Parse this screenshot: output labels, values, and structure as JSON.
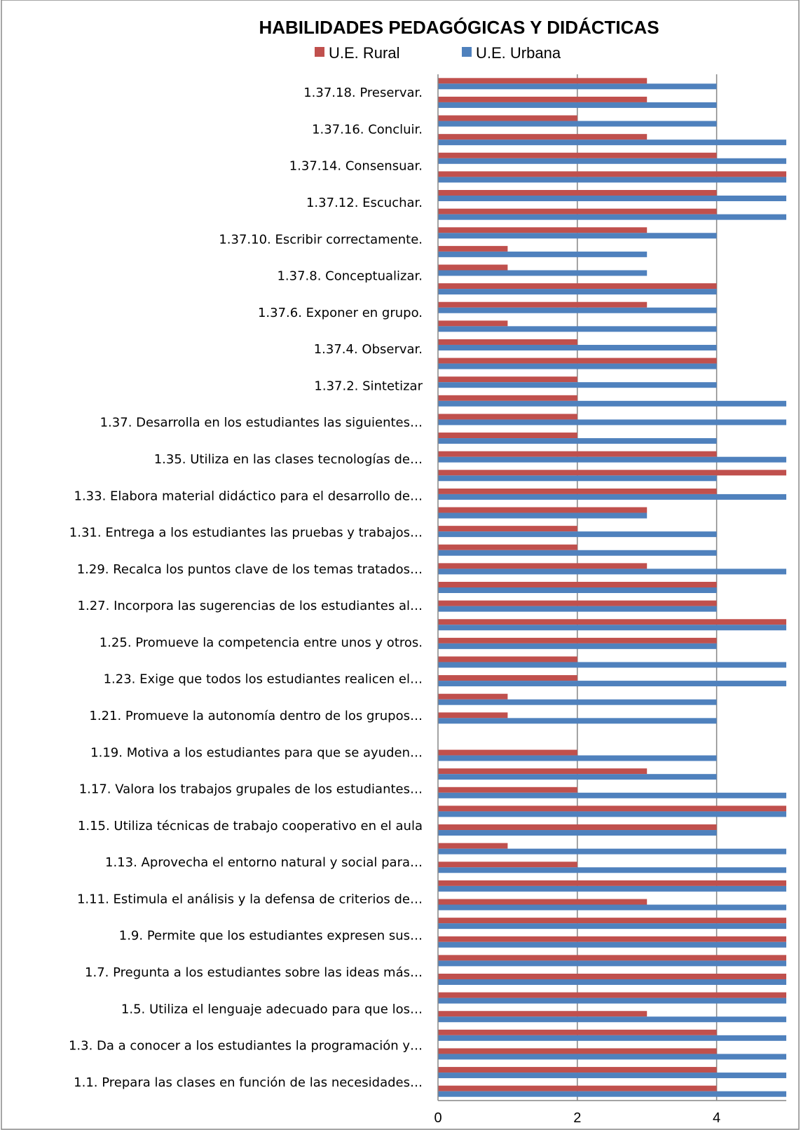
{
  "chart_data": {
    "type": "bar",
    "orientation": "horizontal",
    "title": "HABILIDADES PEDAGÓGICAS Y DIDÁCTICAS",
    "xlabel": "",
    "ylabel": "",
    "xlim": [
      0,
      5
    ],
    "x_ticks": [
      "0",
      "2",
      "4"
    ],
    "grid": true,
    "legend_position": "top",
    "legend": [
      "U.E. Rural",
      "U.E. Urbana"
    ],
    "colors": {
      "rural": "#C0504D",
      "urbana": "#4F81BD"
    },
    "category_labels": [
      "1.37.18.  Preservar.",
      "1.37.16.  Concluir.",
      "1.37.14.  Consensuar.",
      "1.37.12.  Escuchar.",
      "1.37.10.   Escribir correctamente.",
      "1.37.8.    Conceptualizar.",
      "1.37.6.    Exponer en grupo.",
      "1.37.4.    Observar.",
      "1.37.2.    Sintetizar",
      "1.37.   Desarrolla en los estudiantes las siguientes…",
      "1.35.   Utiliza en las clases tecnologías de…",
      "1.33.   Elabora material didáctico para el desarrollo de…",
      "1.31.   Entrega a los estudiantes las pruebas y trabajos…",
      "1.29.   Recalca los puntos clave de los temas tratados…",
      "1.27.   Incorpora las sugerencias de los estudiantes al…",
      "1.25.   Promueve la competencia entre unos y otros.",
      "1.23.   Exige que todos los estudiantes realicen el…",
      "1.21.   Promueve la autonomía dentro de los grupos…",
      "1.19.   Motiva  a los estudiantes para que se ayuden…",
      "1.17.   Valora los trabajos grupales de los estudiantes…",
      "1.15.   Utiliza técnicas de trabajo cooperativo en el aula",
      "1.13.   Aprovecha el entorno natural y social para…",
      "1.11.   Estimula el análisis y la defensa de criterios de…",
      "1.9.  Permite que los estudiantes expresen sus…",
      "1.7.  Pregunta a los estudiantes sobre las ideas más…",
      "1.5.  Utiliza el lenguaje adecuado para que los…",
      "1.3.  Da  a conocer a los estudiantes la programación y…",
      "1.1.   Prepara las clases en función de las necesidades…"
    ],
    "rural": [
      4,
      4,
      4,
      4,
      3,
      5,
      5,
      5,
      5,
      5,
      3,
      5,
      2,
      1,
      4,
      5,
      2,
      3,
      2,
      0,
      1,
      1,
      2,
      2,
      4,
      5,
      4,
      4,
      3,
      2,
      2,
      3,
      4,
      5,
      4,
      2,
      2,
      2,
      2,
      4,
      2,
      1,
      3,
      4,
      1,
      1,
      3,
      4,
      4,
      5,
      4,
      3,
      2,
      3,
      3
    ],
    "urbana": [
      5,
      5,
      5,
      5,
      5,
      5,
      5,
      5,
      5,
      5,
      5,
      5,
      5,
      5,
      4,
      5,
      5,
      4,
      4,
      0,
      4,
      4,
      5,
      5,
      4,
      5,
      4,
      4,
      5,
      4,
      4,
      3,
      5,
      4,
      5,
      4,
      5,
      5,
      4,
      4,
      4,
      4,
      4,
      4,
      3,
      3,
      4,
      5,
      5,
      5,
      5,
      5,
      4,
      4,
      4
    ]
  }
}
